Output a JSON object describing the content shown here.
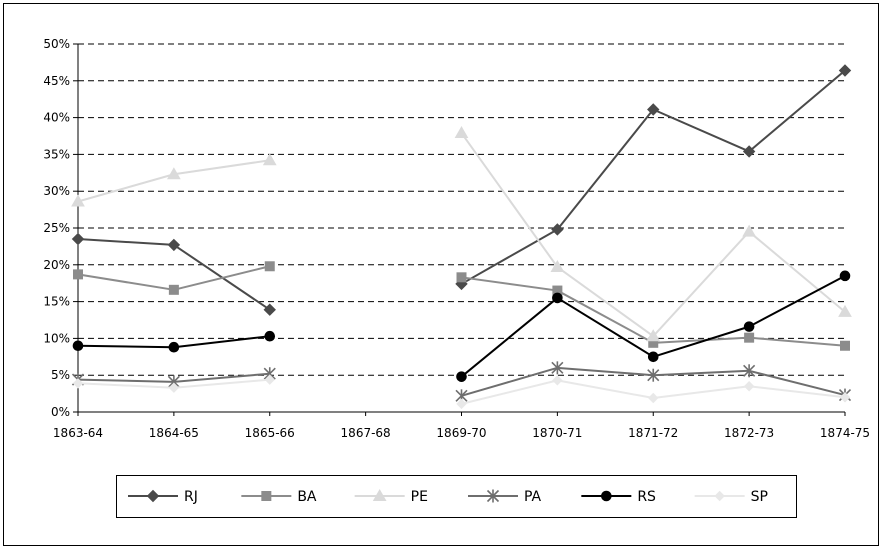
{
  "chart_data": {
    "type": "line",
    "title": "",
    "xlabel": "",
    "ylabel": "",
    "categories": [
      "1863-64",
      "1864-65",
      "1865-66",
      "1867-68",
      "1869-70",
      "1870-71",
      "1871-72",
      "1872-73",
      "1874-75"
    ],
    "ylim": [
      0,
      50
    ],
    "ytick_step": 5,
    "ytick_suffix": "%",
    "grid": "horizontal-dashed",
    "legend_position": "bottom",
    "series": [
      {
        "name": "RJ",
        "color": "#4a4a4a",
        "marker": "diamond",
        "values": [
          23.5,
          22.7,
          13.9,
          null,
          17.4,
          24.8,
          41.1,
          35.4,
          46.4
        ]
      },
      {
        "name": "BA",
        "color": "#8c8c8c",
        "marker": "square",
        "values": [
          18.7,
          16.6,
          19.8,
          null,
          18.3,
          16.5,
          9.4,
          10.1,
          9.0
        ]
      },
      {
        "name": "PE",
        "color": "#dadada",
        "marker": "triangle",
        "values": [
          28.6,
          32.3,
          34.2,
          null,
          37.9,
          19.7,
          10.3,
          24.5,
          13.6
        ]
      },
      {
        "name": "PA",
        "color": "#6e6e6e",
        "marker": "asterisk",
        "values": [
          4.4,
          4.1,
          5.2,
          null,
          2.2,
          6.0,
          5.0,
          5.6,
          2.3
        ]
      },
      {
        "name": "RS",
        "color": "#000000",
        "marker": "circle",
        "values": [
          9.0,
          8.8,
          10.3,
          null,
          4.8,
          15.5,
          7.5,
          11.6,
          18.5
        ]
      },
      {
        "name": "SP",
        "color": "#e8e8e8",
        "marker": "diamond-small",
        "values": [
          3.9,
          3.3,
          4.4,
          null,
          1.1,
          4.3,
          1.9,
          3.5,
          2.0
        ]
      }
    ]
  }
}
